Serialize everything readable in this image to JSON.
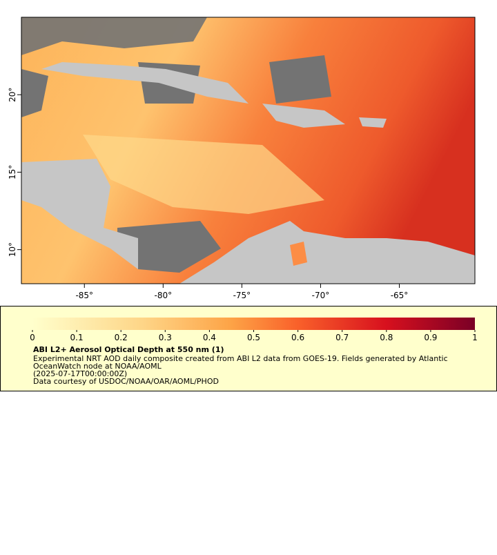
{
  "map": {
    "xlim": [
      -89,
      -60.2
    ],
    "ylim": [
      7.8,
      25
    ],
    "xticks": [
      {
        "value": -85,
        "label": "-85°"
      },
      {
        "value": -80,
        "label": "-80°"
      },
      {
        "value": -75,
        "label": "-75°"
      },
      {
        "value": -70,
        "label": "-70°"
      },
      {
        "value": -65,
        "label": "-65°"
      }
    ],
    "yticks": [
      {
        "value": 10,
        "label": "10°"
      },
      {
        "value": 15,
        "label": "15°"
      },
      {
        "value": 20,
        "label": "20°"
      }
    ]
  },
  "colorbar": {
    "lim": [
      0,
      1
    ],
    "ticks": [
      0,
      0.1,
      0.2,
      0.3,
      0.4,
      0.5,
      0.6,
      0.7,
      0.8,
      0.9,
      1
    ]
  },
  "legend": {
    "title": "ABI L2+ Aerosol Optical Depth at 550 nm (1)",
    "lines": [
      "Experimental NRT AOD daily composite created from ABI L2 data from GOES-19. Fields generated by Atlantic",
      "OceanWatch node at NOAA/AOML",
      "(2025-07-17T00:00:00Z)",
      "Data courtesy of USDOC/NOAA/OAR/AOML/PHOD"
    ]
  }
}
